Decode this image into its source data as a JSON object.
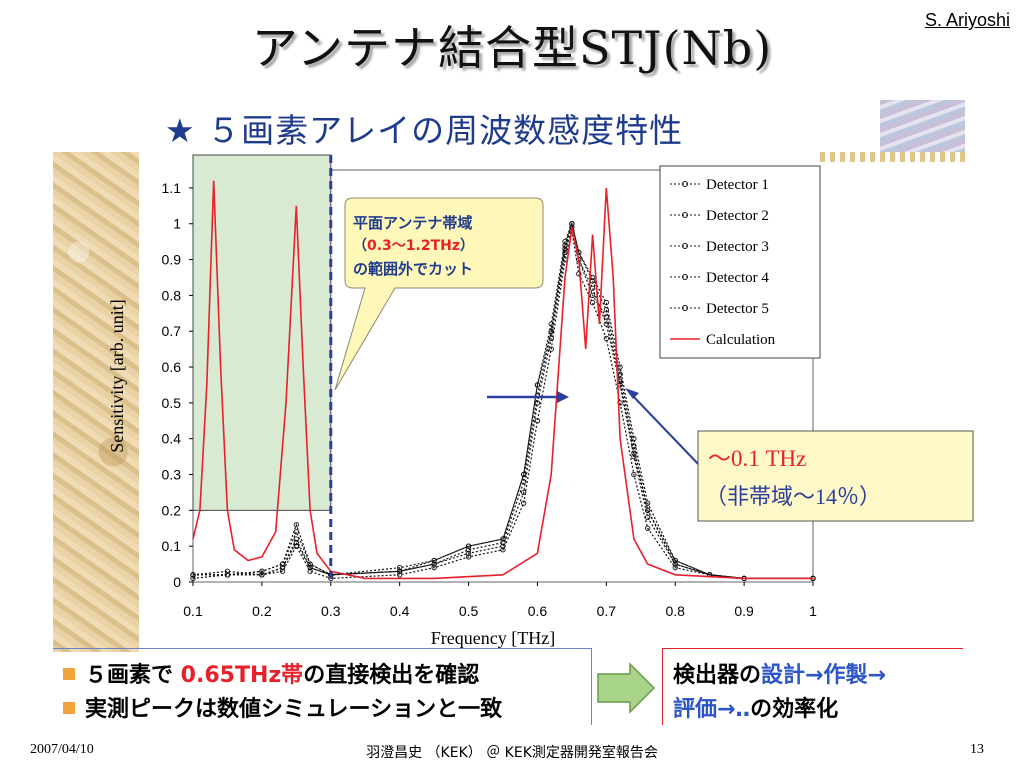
{
  "slide": {
    "title": "アンテナ結合型STJ(Nb)",
    "author": "S. Ariyoshi",
    "subtitle": "★ ５画素アレイの周波数感度特性",
    "bullets": [
      {
        "part1": "５画素で ",
        "red": "0.65THz帯",
        "part2": "の直接検出を確認"
      },
      {
        "part1": "実測ピークは数値シミュレーションと一致"
      }
    ],
    "right_box": {
      "line1_a": "検出器の",
      "line1_b": "設計→作製→",
      "line2_a": "評価→‥",
      "line2_b": "の効率化"
    },
    "footer": {
      "date": "2007/04/10",
      "center": "羽澄昌史 （KEK） ＠ KEK測定器開発室報告会",
      "page": "13"
    }
  },
  "chart_data": {
    "type": "line",
    "xlabel": "Frequency [THz]",
    "ylabel": "Sensitivity [arb. unit]",
    "xlim": [
      0.1,
      1.0
    ],
    "ylim": [
      0,
      1.15
    ],
    "x_ticks": [
      "0.1",
      "0.2",
      "0.3",
      "0.4",
      "0.5",
      "0.6",
      "0.7",
      "0.8",
      "0.9",
      "1"
    ],
    "y_ticks": [
      "0",
      "0.1",
      "0.2",
      "0.3",
      "0.4",
      "0.5",
      "0.6",
      "0.7",
      "0.8",
      "0.9",
      "1",
      "1.1"
    ],
    "grid": false,
    "legend_position": "top-right",
    "shaded_region": {
      "x": [
        0.1,
        0.3
      ],
      "y": [
        0.2,
        1.15
      ]
    },
    "cutoff_line_x": 0.3,
    "callout_left": {
      "line1": "平面アンテナ帯域",
      "line2_a": "（",
      "line2_red": "0.3〜1.2THz",
      "line2_b": "）",
      "line3": "の範囲外でカット"
    },
    "callout_right": {
      "line1": "〜0.1 THz",
      "line2": "（非帯域〜14％）"
    },
    "calculation_points": [
      [
        0.1,
        0.12
      ],
      [
        0.11,
        0.2
      ],
      [
        0.12,
        0.55
      ],
      [
        0.13,
        1.12
      ],
      [
        0.14,
        0.6
      ],
      [
        0.15,
        0.2
      ],
      [
        0.16,
        0.09
      ],
      [
        0.18,
        0.06
      ],
      [
        0.2,
        0.07
      ],
      [
        0.22,
        0.14
      ],
      [
        0.235,
        0.5
      ],
      [
        0.25,
        1.05
      ],
      [
        0.26,
        0.6
      ],
      [
        0.27,
        0.2
      ],
      [
        0.28,
        0.08
      ],
      [
        0.3,
        0.03
      ],
      [
        0.35,
        0.01
      ],
      [
        0.45,
        0.01
      ],
      [
        0.55,
        0.02
      ],
      [
        0.6,
        0.08
      ],
      [
        0.62,
        0.3
      ],
      [
        0.64,
        0.85
      ],
      [
        0.65,
        0.99
      ],
      [
        0.66,
        0.9
      ],
      [
        0.67,
        0.65
      ],
      [
        0.68,
        0.97
      ],
      [
        0.69,
        0.72
      ],
      [
        0.7,
        1.1
      ],
      [
        0.71,
        0.85
      ],
      [
        0.72,
        0.4
      ],
      [
        0.74,
        0.12
      ],
      [
        0.76,
        0.05
      ],
      [
        0.8,
        0.02
      ],
      [
        0.9,
        0.01
      ],
      [
        1.0,
        0.01
      ]
    ],
    "series": [
      {
        "name": "Detector 1",
        "marker": "o",
        "points": [
          [
            0.1,
            0.02
          ],
          [
            0.15,
            0.02
          ],
          [
            0.2,
            0.03
          ],
          [
            0.23,
            0.05
          ],
          [
            0.25,
            0.14
          ],
          [
            0.27,
            0.05
          ],
          [
            0.3,
            0.02
          ],
          [
            0.4,
            0.04
          ],
          [
            0.45,
            0.06
          ],
          [
            0.5,
            0.1
          ],
          [
            0.55,
            0.12
          ],
          [
            0.58,
            0.3
          ],
          [
            0.6,
            0.55
          ],
          [
            0.62,
            0.72
          ],
          [
            0.64,
            0.95
          ],
          [
            0.65,
            1.0
          ],
          [
            0.66,
            0.92
          ],
          [
            0.68,
            0.85
          ],
          [
            0.7,
            0.78
          ],
          [
            0.72,
            0.6
          ],
          [
            0.74,
            0.4
          ],
          [
            0.76,
            0.22
          ],
          [
            0.8,
            0.06
          ],
          [
            0.85,
            0.02
          ],
          [
            0.9,
            0.01
          ],
          [
            1.0,
            0.01
          ]
        ]
      },
      {
        "name": "Detector 2",
        "marker": "^",
        "points": [
          [
            0.1,
            0.02
          ],
          [
            0.15,
            0.02
          ],
          [
            0.2,
            0.02
          ],
          [
            0.23,
            0.04
          ],
          [
            0.25,
            0.12
          ],
          [
            0.27,
            0.04
          ],
          [
            0.3,
            0.02
          ],
          [
            0.4,
            0.03
          ],
          [
            0.45,
            0.05
          ],
          [
            0.5,
            0.08
          ],
          [
            0.55,
            0.1
          ],
          [
            0.58,
            0.25
          ],
          [
            0.6,
            0.5
          ],
          [
            0.62,
            0.68
          ],
          [
            0.64,
            0.92
          ],
          [
            0.65,
            0.99
          ],
          [
            0.66,
            0.9
          ],
          [
            0.68,
            0.82
          ],
          [
            0.7,
            0.72
          ],
          [
            0.72,
            0.55
          ],
          [
            0.74,
            0.35
          ],
          [
            0.76,
            0.18
          ],
          [
            0.8,
            0.05
          ],
          [
            0.85,
            0.02
          ],
          [
            0.9,
            0.01
          ],
          [
            1.0,
            0.01
          ]
        ]
      },
      {
        "name": "Detector 3",
        "marker": "x",
        "points": [
          [
            0.1,
            0.01
          ],
          [
            0.15,
            0.02
          ],
          [
            0.2,
            0.02
          ],
          [
            0.23,
            0.03
          ],
          [
            0.25,
            0.1
          ],
          [
            0.27,
            0.03
          ],
          [
            0.3,
            0.01
          ],
          [
            0.4,
            0.02
          ],
          [
            0.45,
            0.04
          ],
          [
            0.5,
            0.07
          ],
          [
            0.55,
            0.09
          ],
          [
            0.58,
            0.22
          ],
          [
            0.6,
            0.45
          ],
          [
            0.62,
            0.65
          ],
          [
            0.64,
            0.9
          ],
          [
            0.65,
            0.98
          ],
          [
            0.66,
            0.86
          ],
          [
            0.68,
            0.78
          ],
          [
            0.7,
            0.68
          ],
          [
            0.72,
            0.5
          ],
          [
            0.74,
            0.3
          ],
          [
            0.76,
            0.15
          ],
          [
            0.8,
            0.04
          ],
          [
            0.85,
            0.02
          ],
          [
            0.9,
            0.01
          ],
          [
            1.0,
            0.01
          ]
        ]
      },
      {
        "name": "Detector 4",
        "marker": "s",
        "points": [
          [
            0.1,
            0.02
          ],
          [
            0.15,
            0.03
          ],
          [
            0.2,
            0.02
          ],
          [
            0.23,
            0.04
          ],
          [
            0.25,
            0.11
          ],
          [
            0.27,
            0.04
          ],
          [
            0.3,
            0.02
          ],
          [
            0.4,
            0.03
          ],
          [
            0.45,
            0.05
          ],
          [
            0.5,
            0.09
          ],
          [
            0.55,
            0.11
          ],
          [
            0.58,
            0.28
          ],
          [
            0.6,
            0.52
          ],
          [
            0.62,
            0.7
          ],
          [
            0.64,
            0.93
          ],
          [
            0.65,
            1.0
          ],
          [
            0.66,
            0.9
          ],
          [
            0.68,
            0.8
          ],
          [
            0.7,
            0.74
          ],
          [
            0.72,
            0.56
          ],
          [
            0.74,
            0.36
          ],
          [
            0.76,
            0.2
          ],
          [
            0.8,
            0.05
          ],
          [
            0.85,
            0.02
          ],
          [
            0.9,
            0.01
          ],
          [
            1.0,
            0.01
          ]
        ]
      },
      {
        "name": "Detector 5",
        "marker": "*",
        "points": [
          [
            0.1,
            0.02
          ],
          [
            0.15,
            0.02
          ],
          [
            0.2,
            0.03
          ],
          [
            0.23,
            0.05
          ],
          [
            0.25,
            0.16
          ],
          [
            0.27,
            0.05
          ],
          [
            0.3,
            0.02
          ],
          [
            0.4,
            0.03
          ],
          [
            0.45,
            0.06
          ],
          [
            0.5,
            0.1
          ],
          [
            0.55,
            0.12
          ],
          [
            0.58,
            0.3
          ],
          [
            0.6,
            0.55
          ],
          [
            0.62,
            0.7
          ],
          [
            0.64,
            0.94
          ],
          [
            0.65,
            1.0
          ],
          [
            0.66,
            0.92
          ],
          [
            0.68,
            0.84
          ],
          [
            0.7,
            0.76
          ],
          [
            0.72,
            0.58
          ],
          [
            0.74,
            0.38
          ],
          [
            0.76,
            0.2
          ],
          [
            0.8,
            0.06
          ],
          [
            0.85,
            0.02
          ],
          [
            0.9,
            0.01
          ],
          [
            1.0,
            0.01
          ]
        ]
      },
      {
        "name": "Calculation",
        "marker": "line",
        "color": "#e8202a"
      }
    ]
  }
}
